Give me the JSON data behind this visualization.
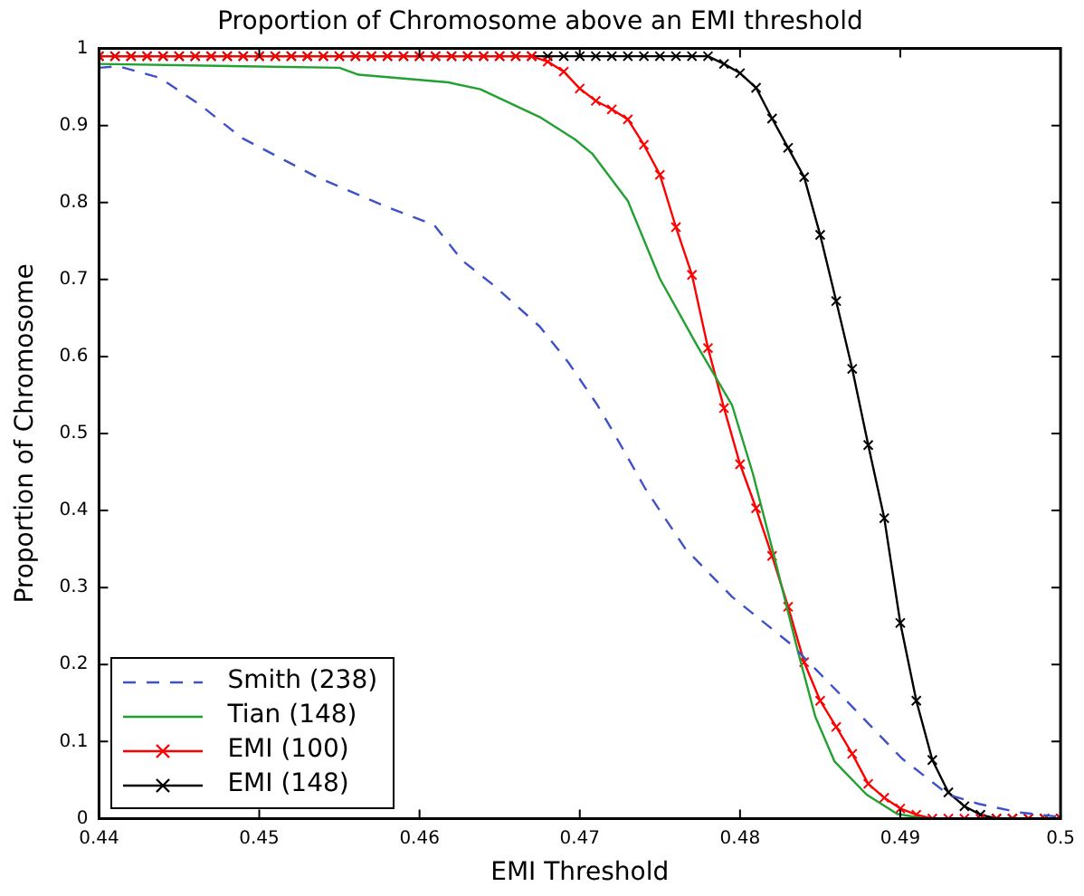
{
  "chart_data": {
    "type": "line",
    "title": "Proportion of Chromosome above an EMI threshold",
    "xlabel": "EMI Threshold",
    "ylabel": "Proportion of Chromosome",
    "xlim": [
      0.44,
      0.5
    ],
    "xticks": [
      0.44,
      0.45,
      0.46,
      0.47,
      0.48,
      0.49,
      0.5
    ],
    "ylim": [
      0,
      1
    ],
    "yticks": [
      0,
      0.1,
      0.2,
      0.3,
      0.4,
      0.5,
      0.6,
      0.7,
      0.8,
      0.9,
      1
    ],
    "grid": false,
    "legend": "bottom left",
    "series": [
      {
        "name": "Smith (238)",
        "color": "#3f51c9",
        "line_style": "dashed",
        "marker": "none",
        "x": [
          0.44,
          0.4412,
          0.4438,
          0.4463,
          0.4489,
          0.45,
          0.4536,
          0.458,
          0.4609,
          0.4627,
          0.4646,
          0.4675,
          0.4693,
          0.4711,
          0.4722,
          0.4741,
          0.4766,
          0.4795,
          0.4832,
          0.4865,
          0.4901,
          0.493,
          0.4949,
          0.4974,
          0.5
        ],
        "values": [
          0.975,
          0.977,
          0.962,
          0.927,
          0.884,
          0.872,
          0.833,
          0.794,
          0.771,
          0.724,
          0.693,
          0.639,
          0.592,
          0.537,
          0.498,
          0.428,
          0.35,
          0.288,
          0.226,
          0.156,
          0.078,
          0.031,
          0.019,
          0.008,
          0.002
        ]
      },
      {
        "name": "Tian (148)",
        "color": "#22a032",
        "line_style": "solid",
        "marker": "none",
        "x": [
          0.44,
          0.455,
          0.4562,
          0.4618,
          0.4638,
          0.4675,
          0.4697,
          0.4708,
          0.473,
          0.475,
          0.4773,
          0.4795,
          0.4808,
          0.4821,
          0.4836,
          0.4847,
          0.4859,
          0.4879,
          0.4898,
          0.4915,
          0.5
        ],
        "values": [
          0.98,
          0.975,
          0.966,
          0.956,
          0.947,
          0.911,
          0.882,
          0.863,
          0.802,
          0.701,
          0.615,
          0.537,
          0.448,
          0.343,
          0.218,
          0.132,
          0.074,
          0.031,
          0.006,
          0,
          0
        ]
      },
      {
        "name": "EMI (100)",
        "color": "#ff0000",
        "line_style": "solid",
        "marker": "cross",
        "x": [
          0.44,
          0.441,
          0.442,
          0.443,
          0.444,
          0.445,
          0.446,
          0.447,
          0.448,
          0.449,
          0.45,
          0.451,
          0.452,
          0.453,
          0.454,
          0.455,
          0.456,
          0.457,
          0.458,
          0.459,
          0.46,
          0.461,
          0.462,
          0.463,
          0.464,
          0.465,
          0.466,
          0.467,
          0.468,
          0.469,
          0.47,
          0.471,
          0.472,
          0.473,
          0.474,
          0.475,
          0.476,
          0.477,
          0.478,
          0.479,
          0.48,
          0.481,
          0.482,
          0.483,
          0.484,
          0.485,
          0.486,
          0.487,
          0.488,
          0.489,
          0.49,
          0.491,
          0.492,
          0.493,
          0.494,
          0.495,
          0.496,
          0.497,
          0.498,
          0.499,
          0.5
        ],
        "values": [
          0.99,
          0.99,
          0.99,
          0.99,
          0.99,
          0.99,
          0.99,
          0.99,
          0.99,
          0.99,
          0.99,
          0.99,
          0.99,
          0.99,
          0.99,
          0.99,
          0.99,
          0.99,
          0.99,
          0.99,
          0.99,
          0.99,
          0.99,
          0.99,
          0.99,
          0.99,
          0.99,
          0.99,
          0.983,
          0.97,
          0.948,
          0.932,
          0.921,
          0.908,
          0.875,
          0.836,
          0.768,
          0.706,
          0.611,
          0.533,
          0.46,
          0.403,
          0.341,
          0.275,
          0.203,
          0.153,
          0.119,
          0.084,
          0.045,
          0.027,
          0.013,
          0.005,
          0,
          0,
          0,
          0,
          0,
          0,
          0,
          0,
          0
        ]
      },
      {
        "name": "EMI (148)",
        "color": "#000000",
        "line_style": "solid",
        "marker": "cross",
        "x": [
          0.44,
          0.441,
          0.442,
          0.443,
          0.444,
          0.445,
          0.446,
          0.447,
          0.448,
          0.449,
          0.45,
          0.451,
          0.452,
          0.453,
          0.454,
          0.455,
          0.456,
          0.457,
          0.458,
          0.459,
          0.46,
          0.461,
          0.462,
          0.463,
          0.464,
          0.465,
          0.466,
          0.467,
          0.468,
          0.469,
          0.47,
          0.471,
          0.472,
          0.473,
          0.474,
          0.475,
          0.476,
          0.477,
          0.478,
          0.479,
          0.48,
          0.481,
          0.482,
          0.483,
          0.484,
          0.485,
          0.486,
          0.487,
          0.488,
          0.489,
          0.49,
          0.491,
          0.492,
          0.493,
          0.494,
          0.495,
          0.496,
          0.497,
          0.498,
          0.499,
          0.5
        ],
        "values": [
          0.99,
          0.99,
          0.99,
          0.99,
          0.99,
          0.99,
          0.99,
          0.99,
          0.99,
          0.99,
          0.99,
          0.99,
          0.99,
          0.99,
          0.99,
          0.99,
          0.99,
          0.99,
          0.99,
          0.99,
          0.99,
          0.99,
          0.99,
          0.99,
          0.99,
          0.99,
          0.99,
          0.99,
          0.99,
          0.99,
          0.99,
          0.99,
          0.99,
          0.99,
          0.99,
          0.99,
          0.99,
          0.99,
          0.99,
          0.98,
          0.968,
          0.949,
          0.909,
          0.871,
          0.833,
          0.758,
          0.672,
          0.584,
          0.485,
          0.39,
          0.254,
          0.153,
          0.076,
          0.034,
          0.016,
          0.005,
          0,
          0,
          0,
          0,
          0
        ]
      }
    ]
  }
}
